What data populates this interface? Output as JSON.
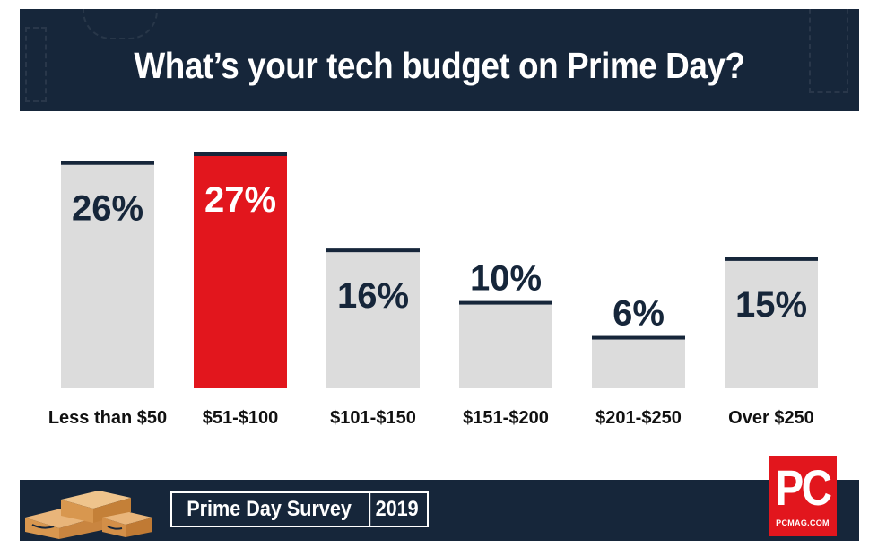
{
  "header": {
    "title": "What’s your tech budget on Prime Day?"
  },
  "chart_data": {
    "type": "bar",
    "title": "What’s your tech budget on Prime Day?",
    "categories": [
      "Less than $50",
      "$51-$100",
      "$101-$150",
      "$151-$200",
      "$201-$250",
      "Over $250"
    ],
    "values": [
      26,
      27,
      16,
      10,
      6,
      15
    ],
    "value_labels": [
      "26%",
      "27%",
      "16%",
      "10%",
      "6%",
      "15%"
    ],
    "highlight_index": 1,
    "unit": "%",
    "xlabel": "",
    "ylabel": "",
    "ylim": [
      0,
      27
    ],
    "grid": false,
    "legend": "none",
    "colors": {
      "bar": "#dcdcdc",
      "highlight": "#e2161d",
      "cap": "#16263a",
      "label_dark": "#16263a",
      "label_light": "#ffffff"
    }
  },
  "footer": {
    "survey_label": "Prime Day Survey",
    "survey_year": "2019",
    "icon": "amazon-boxes-icon"
  },
  "logo": {
    "letters": "PC",
    "subtitle": "PCMAG.COM",
    "color": "#e2161d"
  }
}
